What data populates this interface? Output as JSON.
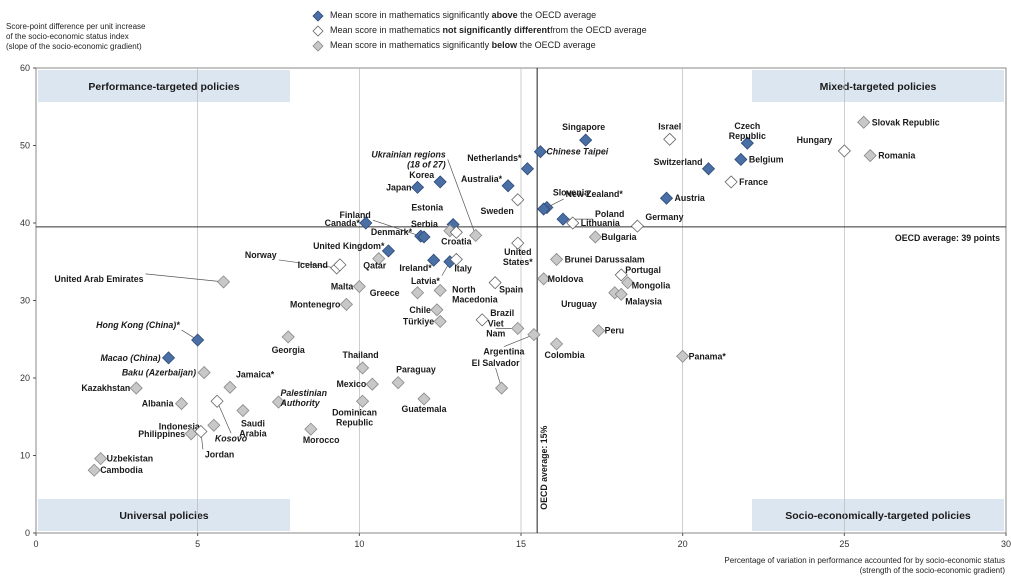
{
  "legend": {
    "items": [
      {
        "marker": "above",
        "pre": "Mean score in mathematics significantly ",
        "bold": "above",
        "post": " the OECD average"
      },
      {
        "marker": "nodiff",
        "pre": "Mean score in mathematics ",
        "bold": "not significantly different",
        "post": "from the OECD average"
      },
      {
        "marker": "below",
        "pre": "Mean score in mathematics significantly ",
        "bold": "below",
        "post": " the OECD average"
      }
    ]
  },
  "colors": {
    "above": "#4a6fa5",
    "nodiff": "#ffffff",
    "below": "#c8c8c8",
    "quad_box": "#dce6f1"
  },
  "chart_data": {
    "type": "scatter",
    "ylabel_lines": [
      "Score-point difference per unit increase",
      "of the socio-economic status index",
      "(slope of the socio-economic gradient)"
    ],
    "xlabel_lines": [
      "Percentage of variation in performance accounted for by socio-economic status",
      "(strength of the socio-economic gradient)"
    ],
    "xlim": [
      0,
      30
    ],
    "ylim": [
      0,
      60
    ],
    "xticks": [
      0,
      5,
      10,
      15,
      20,
      25,
      30
    ],
    "yticks": [
      0,
      10,
      20,
      30,
      40,
      50,
      60
    ],
    "grid_x_minor": [
      5,
      10,
      15,
      20,
      25
    ],
    "oecd_avg_x": 15.5,
    "oecd_avg_y": 39.5,
    "oecd_avg_y_label": "OECD average: 39 points",
    "oecd_avg_x_label": "OECD average: 15%",
    "quadrants": [
      "Performance-targeted policies",
      "Mixed-targeted policies",
      "Universal policies",
      "Socio-economically-targeted policies"
    ],
    "points": [
      {
        "name": "Singapore",
        "x": 17.0,
        "y": 50.7,
        "cat": "above"
      },
      {
        "name": "Israel",
        "x": 19.6,
        "y": 50.8,
        "cat": "nodiff"
      },
      {
        "name": "Czech Republic",
        "x": 22.0,
        "y": 50.3,
        "cat": "above"
      },
      {
        "name": "Slovak Republic",
        "x": 25.6,
        "y": 53.0,
        "cat": "below"
      },
      {
        "name": "Hungary",
        "x": 25.0,
        "y": 49.3,
        "cat": "nodiff"
      },
      {
        "name": "Romania",
        "x": 25.8,
        "y": 48.7,
        "cat": "below"
      },
      {
        "name": "Belgium",
        "x": 21.8,
        "y": 48.2,
        "cat": "above"
      },
      {
        "name": "Switzerland",
        "x": 20.8,
        "y": 47.0,
        "cat": "above"
      },
      {
        "name": "France",
        "x": 21.5,
        "y": 45.3,
        "cat": "nodiff"
      },
      {
        "name": "Austria",
        "x": 19.5,
        "y": 43.2,
        "cat": "above"
      },
      {
        "name": "Chinese Taipei",
        "x": 15.6,
        "y": 49.2,
        "cat": "above"
      },
      {
        "name": "Netherlands*",
        "x": 15.2,
        "y": 47.0,
        "cat": "above"
      },
      {
        "name": "Australia*",
        "x": 14.6,
        "y": 44.8,
        "cat": "above"
      },
      {
        "name": "Sweden",
        "x": 14.9,
        "y": 43.0,
        "cat": "nodiff"
      },
      {
        "name": "Slovenia",
        "x": 15.8,
        "y": 42.0,
        "cat": "above"
      },
      {
        "name": "New Zealand*",
        "x": 15.7,
        "y": 41.8,
        "cat": "above"
      },
      {
        "name": "Poland",
        "x": 16.3,
        "y": 40.5,
        "cat": "above"
      },
      {
        "name": "Lithuania",
        "x": 16.6,
        "y": 40.0,
        "cat": "nodiff"
      },
      {
        "name": "Germany",
        "x": 18.6,
        "y": 39.6,
        "cat": "nodiff"
      },
      {
        "name": "Korea",
        "x": 12.5,
        "y": 45.3,
        "cat": "above"
      },
      {
        "name": "Japan",
        "x": 11.8,
        "y": 44.6,
        "cat": "above"
      },
      {
        "name": "Ukrainian regions (18 of 27)",
        "x": 13.6,
        "y": 38.4,
        "cat": "below"
      },
      {
        "name": "Estonia",
        "x": 12.9,
        "y": 39.8,
        "cat": "above"
      },
      {
        "name": "Serbia",
        "x": 12.8,
        "y": 39.0,
        "cat": "below"
      },
      {
        "name": "Finland",
        "x": 11.9,
        "y": 38.3,
        "cat": "above"
      },
      {
        "name": "Canada*",
        "x": 10.2,
        "y": 40.0,
        "cat": "above"
      },
      {
        "name": "Denmark*",
        "x": 12.0,
        "y": 38.2,
        "cat": "above"
      },
      {
        "name": "Croatia",
        "x": 13.0,
        "y": 38.8,
        "cat": "nodiff"
      },
      {
        "name": "United Kingdom*",
        "x": 10.9,
        "y": 36.4,
        "cat": "above"
      },
      {
        "name": "United States*",
        "x": 14.9,
        "y": 37.4,
        "cat": "nodiff"
      },
      {
        "name": "Bulgaria",
        "x": 17.3,
        "y": 38.2,
        "cat": "below"
      },
      {
        "name": "Brunei Darussalam",
        "x": 16.1,
        "y": 35.3,
        "cat": "below"
      },
      {
        "name": "Norway",
        "x": 9.3,
        "y": 34.2,
        "cat": "nodiff"
      },
      {
        "name": "Iceland",
        "x": 9.4,
        "y": 34.6,
        "cat": "nodiff"
      },
      {
        "name": "Qatar",
        "x": 10.6,
        "y": 35.4,
        "cat": "below"
      },
      {
        "name": "Ireland*",
        "x": 12.3,
        "y": 35.2,
        "cat": "above"
      },
      {
        "name": "Latvia*",
        "x": 12.8,
        "y": 35.0,
        "cat": "above"
      },
      {
        "name": "Italy",
        "x": 13.0,
        "y": 35.3,
        "cat": "nodiff"
      },
      {
        "name": "Moldova",
        "x": 15.7,
        "y": 32.8,
        "cat": "below"
      },
      {
        "name": "Portugal",
        "x": 18.1,
        "y": 33.3,
        "cat": "nodiff"
      },
      {
        "name": "Mongolia",
        "x": 18.3,
        "y": 32.3,
        "cat": "below"
      },
      {
        "name": "United Arab Emirates",
        "x": 5.8,
        "y": 32.4,
        "cat": "below"
      },
      {
        "name": "Malta",
        "x": 10.0,
        "y": 31.8,
        "cat": "below"
      },
      {
        "name": "Greece",
        "x": 11.8,
        "y": 31.0,
        "cat": "below"
      },
      {
        "name": "North Macedonia",
        "x": 12.5,
        "y": 31.3,
        "cat": "below"
      },
      {
        "name": "Spain",
        "x": 14.2,
        "y": 32.3,
        "cat": "nodiff"
      },
      {
        "name": "Uruguay",
        "x": 17.9,
        "y": 31.0,
        "cat": "below"
      },
      {
        "name": "Malaysia",
        "x": 18.1,
        "y": 30.8,
        "cat": "below"
      },
      {
        "name": "Montenegro",
        "x": 9.6,
        "y": 29.5,
        "cat": "below"
      },
      {
        "name": "Chile",
        "x": 12.4,
        "y": 28.8,
        "cat": "below"
      },
      {
        "name": "Brazil",
        "x": 13.8,
        "y": 27.5,
        "cat": "nodiff"
      },
      {
        "name": "Türkiye",
        "x": 12.5,
        "y": 27.3,
        "cat": "below"
      },
      {
        "name": "Viet Nam",
        "x": 14.9,
        "y": 26.4,
        "cat": "below"
      },
      {
        "name": "Argentina",
        "x": 15.4,
        "y": 25.6,
        "cat": "below"
      },
      {
        "name": "Peru",
        "x": 17.4,
        "y": 26.1,
        "cat": "below"
      },
      {
        "name": "Colombia",
        "x": 16.1,
        "y": 24.4,
        "cat": "below"
      },
      {
        "name": "Panama*",
        "x": 20.0,
        "y": 22.8,
        "cat": "below"
      },
      {
        "name": "Hong Kong (China)*",
        "x": 5.0,
        "y": 24.9,
        "cat": "above"
      },
      {
        "name": "Georgia",
        "x": 7.8,
        "y": 25.3,
        "cat": "below"
      },
      {
        "name": "Macao (China)",
        "x": 4.1,
        "y": 22.6,
        "cat": "above"
      },
      {
        "name": "Baku (Azerbaijan)",
        "x": 5.2,
        "y": 20.7,
        "cat": "below"
      },
      {
        "name": "Thailand",
        "x": 10.1,
        "y": 21.3,
        "cat": "below"
      },
      {
        "name": "Paraguay",
        "x": 11.2,
        "y": 19.4,
        "cat": "below"
      },
      {
        "name": "Mexico",
        "x": 10.4,
        "y": 19.2,
        "cat": "below"
      },
      {
        "name": "Jamaica*",
        "x": 6.0,
        "y": 18.8,
        "cat": "below"
      },
      {
        "name": "El Salvador",
        "x": 14.4,
        "y": 18.7,
        "cat": "below"
      },
      {
        "name": "Kazakhstan",
        "x": 3.1,
        "y": 18.7,
        "cat": "below"
      },
      {
        "name": "Albania",
        "x": 4.5,
        "y": 16.7,
        "cat": "below"
      },
      {
        "name": "Palestinian Authority",
        "x": 7.5,
        "y": 16.9,
        "cat": "below"
      },
      {
        "name": "Dominican Republic",
        "x": 10.1,
        "y": 17.0,
        "cat": "below"
      },
      {
        "name": "Guatemala",
        "x": 12.0,
        "y": 17.3,
        "cat": "below"
      },
      {
        "name": "Saudi Arabia",
        "x": 6.4,
        "y": 15.8,
        "cat": "below"
      },
      {
        "name": "Indonesia",
        "x": 5.5,
        "y": 13.9,
        "cat": "below"
      },
      {
        "name": "Kosovo",
        "x": 5.6,
        "y": 17.0,
        "cat": "nodiff"
      },
      {
        "name": "Philippines",
        "x": 4.8,
        "y": 12.8,
        "cat": "below"
      },
      {
        "name": "Morocco",
        "x": 8.5,
        "y": 13.4,
        "cat": "below"
      },
      {
        "name": "Jordan",
        "x": 5.1,
        "y": 13.1,
        "cat": "nodiff"
      },
      {
        "name": "Uzbekistan",
        "x": 2.0,
        "y": 9.6,
        "cat": "below"
      },
      {
        "name": "Cambodia",
        "x": 1.8,
        "y": 8.1,
        "cat": "below"
      }
    ]
  }
}
